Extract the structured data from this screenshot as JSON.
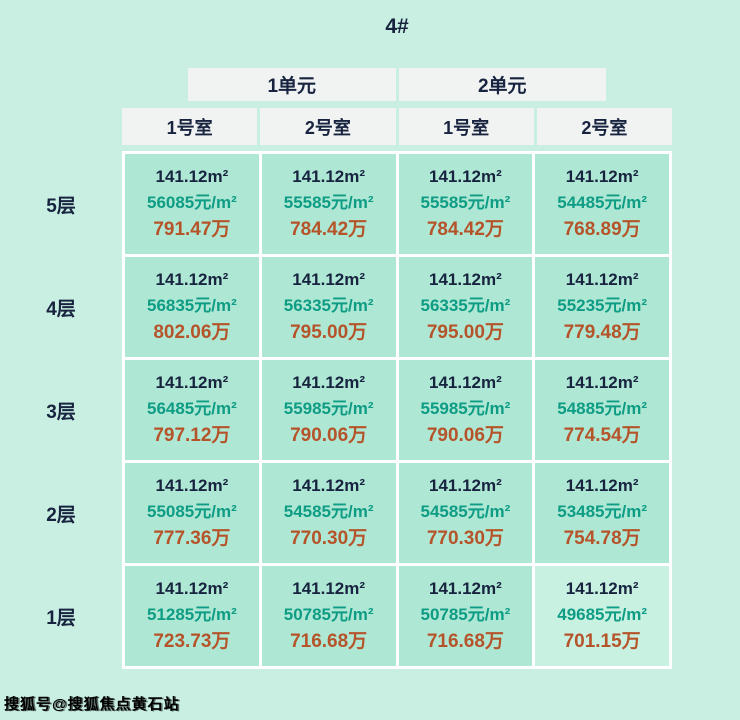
{
  "chart_data": {
    "type": "table",
    "title": "4#",
    "column_groups": [
      "1单元",
      "2单元"
    ],
    "columns": [
      "1号室",
      "2号室",
      "1号室",
      "2号室"
    ],
    "row_labels": [
      "5层",
      "4层",
      "3层",
      "2层",
      "1层"
    ],
    "floors": [
      {
        "label": "5层",
        "cells": [
          {
            "area": "141.12m²",
            "unit_price": "56085元/m²",
            "total": "791.47万"
          },
          {
            "area": "141.12m²",
            "unit_price": "55585元/m²",
            "total": "784.42万"
          },
          {
            "area": "141.12m²",
            "unit_price": "55585元/m²",
            "total": "784.42万"
          },
          {
            "area": "141.12m²",
            "unit_price": "54485元/m²",
            "total": "768.89万"
          }
        ]
      },
      {
        "label": "4层",
        "cells": [
          {
            "area": "141.12m²",
            "unit_price": "56835元/m²",
            "total": "802.06万"
          },
          {
            "area": "141.12m²",
            "unit_price": "56335元/m²",
            "total": "795.00万"
          },
          {
            "area": "141.12m²",
            "unit_price": "56335元/m²",
            "total": "795.00万"
          },
          {
            "area": "141.12m²",
            "unit_price": "55235元/m²",
            "total": "779.48万"
          }
        ]
      },
      {
        "label": "3层",
        "cells": [
          {
            "area": "141.12m²",
            "unit_price": "56485元/m²",
            "total": "797.12万"
          },
          {
            "area": "141.12m²",
            "unit_price": "55985元/m²",
            "total": "790.06万"
          },
          {
            "area": "141.12m²",
            "unit_price": "55985元/m²",
            "total": "790.06万"
          },
          {
            "area": "141.12m²",
            "unit_price": "54885元/m²",
            "total": "774.54万"
          }
        ]
      },
      {
        "label": "2层",
        "cells": [
          {
            "area": "141.12m²",
            "unit_price": "55085元/m²",
            "total": "777.36万"
          },
          {
            "area": "141.12m²",
            "unit_price": "54585元/m²",
            "total": "770.30万"
          },
          {
            "area": "141.12m²",
            "unit_price": "54585元/m²",
            "total": "770.30万"
          },
          {
            "area": "141.12m²",
            "unit_price": "53485元/m²",
            "total": "754.78万"
          }
        ]
      },
      {
        "label": "1层",
        "cells": [
          {
            "area": "141.12m²",
            "unit_price": "51285元/m²",
            "total": "723.73万"
          },
          {
            "area": "141.12m²",
            "unit_price": "50785元/m²",
            "total": "716.68万"
          },
          {
            "area": "141.12m²",
            "unit_price": "50785元/m²",
            "total": "716.68万"
          },
          {
            "area": "141.12m²",
            "unit_price": "49685元/m²",
            "total": "701.15万"
          }
        ]
      }
    ]
  },
  "watermark": "搜狐号@搜狐焦点黄石站",
  "colors": {
    "page_bg": "#c9efe3",
    "cell_bg": "#aee8d4",
    "highlight_cell_bg": "#c8f1e2",
    "header_bg": "#f1f3f2",
    "navy_text": "#17233f",
    "teal_text": "#0e9c85",
    "total_text": "#b5542a"
  }
}
